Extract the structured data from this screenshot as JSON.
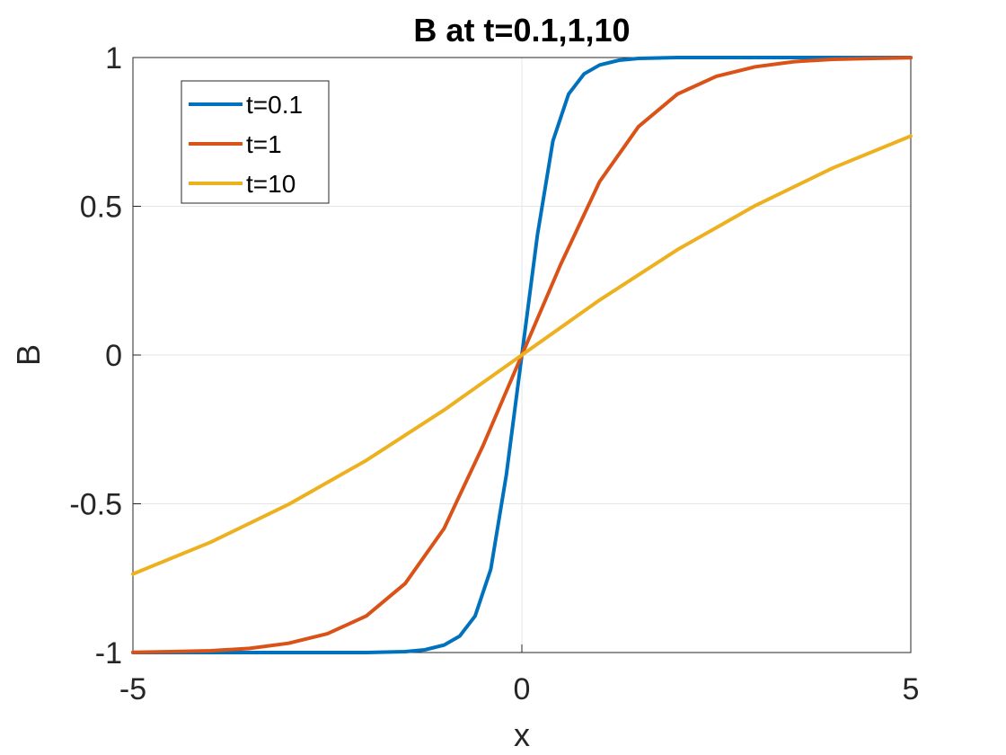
{
  "chart_data": {
    "type": "line",
    "title": "B at t=0.1,1,10",
    "xlabel": "x",
    "ylabel": "B",
    "xlim": [
      -5,
      5
    ],
    "ylim": [
      -1,
      1
    ],
    "xticks": [
      "-5",
      "0",
      "5"
    ],
    "yticks": [
      "-1",
      "-0.5",
      "0",
      "0.5",
      "1"
    ],
    "grid": true,
    "legend_position": "top-left",
    "series": [
      {
        "name": "t=0.1",
        "color": "#0072BD",
        "x": [
          -5,
          -4,
          -3,
          -2,
          -1.5,
          -1.25,
          -1,
          -0.8,
          -0.6,
          -0.4,
          -0.2,
          0,
          0.2,
          0.4,
          0.6,
          0.8,
          1,
          1.25,
          1.5,
          2,
          3,
          4,
          5
        ],
        "y": [
          -1,
          -1,
          -1,
          -1,
          -0.997,
          -0.991,
          -0.975,
          -0.945,
          -0.877,
          -0.72,
          -0.403,
          0,
          0.403,
          0.72,
          0.877,
          0.945,
          0.975,
          0.991,
          0.997,
          1,
          1,
          1,
          1
        ]
      },
      {
        "name": "t=1",
        "color": "#D95319",
        "x": [
          -5,
          -4.5,
          -4,
          -3.5,
          -3,
          -2.5,
          -2,
          -1.5,
          -1,
          -0.5,
          0,
          0.5,
          1,
          1.5,
          2,
          2.5,
          3,
          3.5,
          4,
          4.5,
          5
        ],
        "y": [
          -0.999,
          -0.997,
          -0.994,
          -0.986,
          -0.969,
          -0.937,
          -0.877,
          -0.768,
          -0.583,
          -0.305,
          0,
          0.305,
          0.583,
          0.768,
          0.877,
          0.937,
          0.969,
          0.986,
          0.994,
          0.997,
          0.999
        ]
      },
      {
        "name": "t=10",
        "color": "#EDB120",
        "x": [
          -5,
          -4,
          -3,
          -2,
          -1,
          0,
          1,
          2,
          3,
          4,
          5
        ],
        "y": [
          -0.736,
          -0.629,
          -0.502,
          -0.354,
          -0.185,
          0,
          0.185,
          0.354,
          0.502,
          0.629,
          0.736
        ]
      }
    ]
  }
}
